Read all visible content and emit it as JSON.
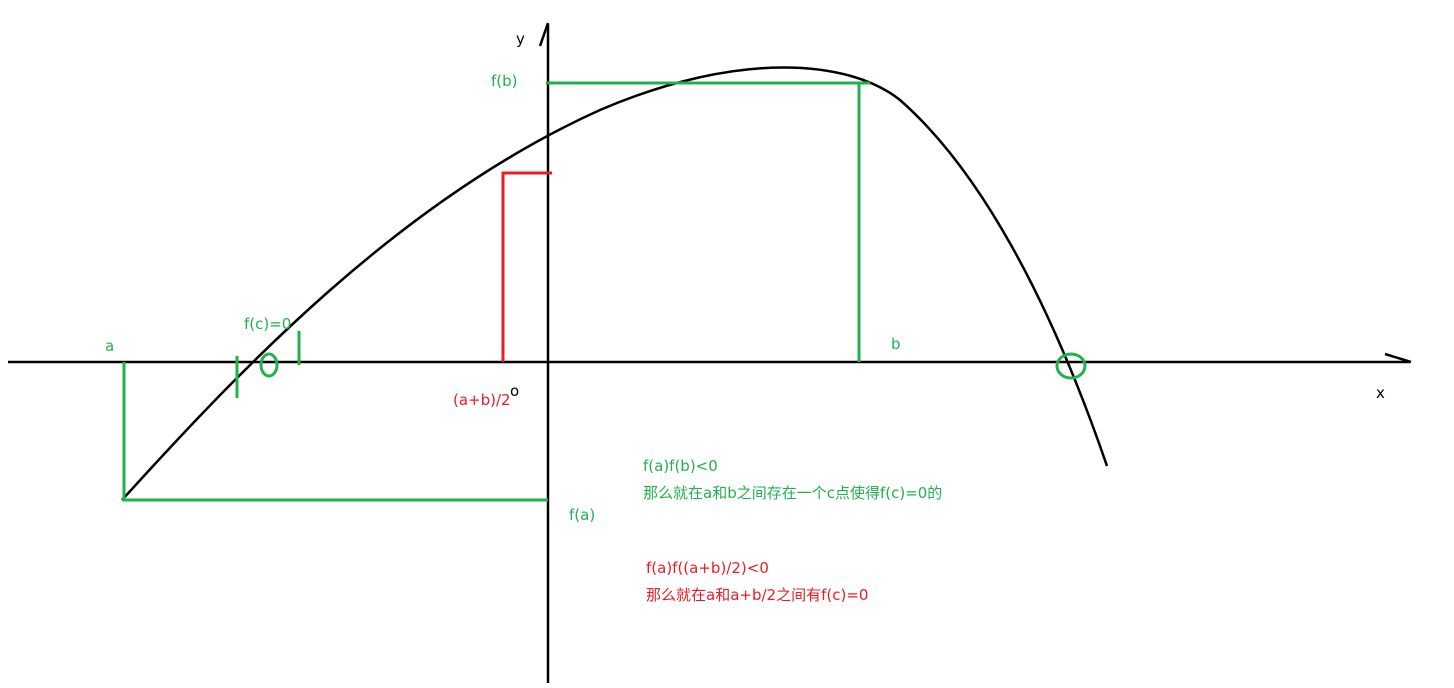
{
  "axes": {
    "x_label": "x",
    "y_label": "y",
    "origin_label": "o"
  },
  "labels": {
    "a": "a",
    "b": "b",
    "fa": "f(a)",
    "fb": "f(b)",
    "fc": "f(c)=0",
    "midpoint": "(a+b)/2"
  },
  "notes": {
    "green_line1": "f(a)f(b)<0",
    "green_line2": "那么就在a和b之间存在一个c点使得f(c)=0的",
    "red_line1": "f(a)f((a+b)/2)<0",
    "red_line2": "那么就在a和a+b/2之间有f(c)=0"
  },
  "colors": {
    "green": "#22b14c",
    "red": "#ed1c24",
    "black": "#000000"
  }
}
